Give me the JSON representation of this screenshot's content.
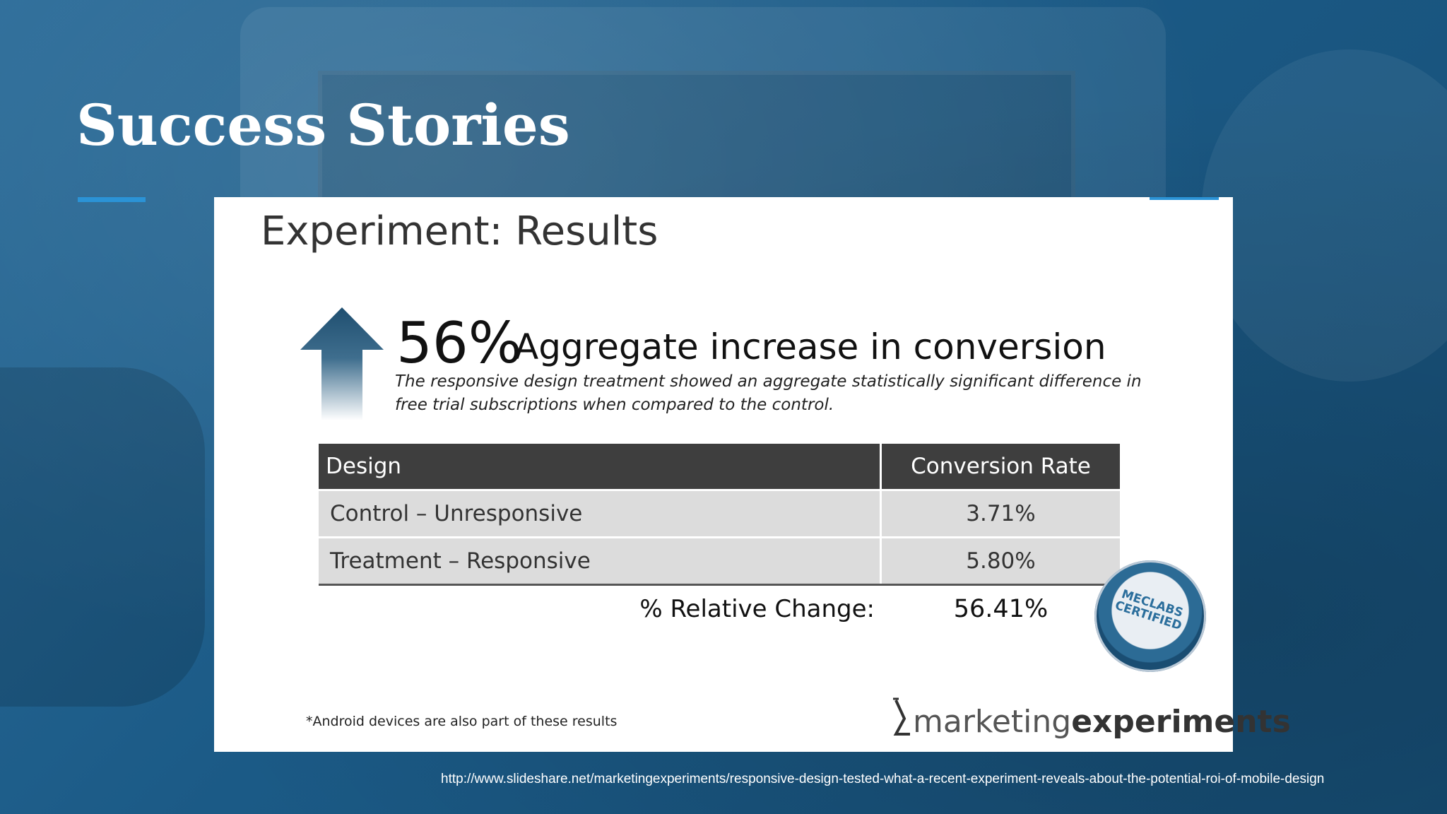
{
  "slide": {
    "title": "Success Stories",
    "source_url": "http://www.slideshare.net/marketingexperiments/responsive-design-tested-what-a-recent-experiment-reveals-about-the-potential-roi-of-mobile-design"
  },
  "panel": {
    "title": "Experiment: Results",
    "headline_percent": "56%",
    "headline_text": "Aggregate increase in conversion",
    "subtext": "The responsive design treatment showed an aggregate statistically significant difference in free trial subscriptions when compared to the control.",
    "table": {
      "headers": [
        "Design",
        "Conversion Rate"
      ],
      "rows": [
        {
          "design": "Control – Unresponsive",
          "rate": "3.71%"
        },
        {
          "design": "Treatment – Responsive",
          "rate": "5.80%"
        }
      ],
      "total_label": "% Relative Change:",
      "total_value": "56.41%"
    },
    "badge_text": "MECLABS CERTIFIED",
    "footnote": "*Android devices are also part of these results",
    "logo": {
      "part1": "marketing",
      "part2": "experiments"
    }
  },
  "colors": {
    "background": "#1c5a84",
    "accent": "#2b93d6",
    "table_header": "#3e3e3e",
    "table_row": "#dcdcdc"
  },
  "icons": {
    "arrow": "up-arrow-icon",
    "badge": "certified-badge-icon",
    "logo_mark": "flask-icon"
  }
}
